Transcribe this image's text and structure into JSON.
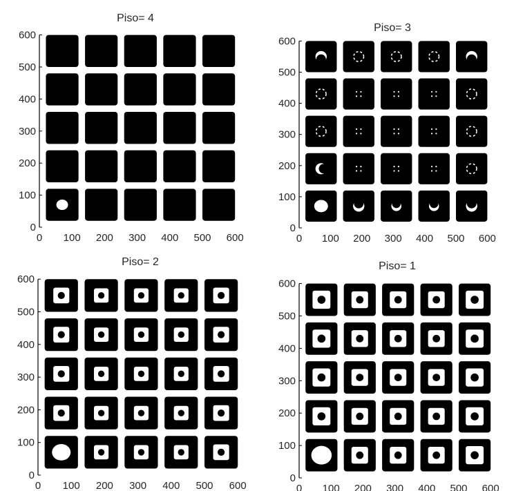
{
  "chart_data": [
    {
      "type": "scatter",
      "title": "Piso= 4",
      "xlim": [
        0,
        600
      ],
      "ylim": [
        0,
        600
      ],
      "xticks": [
        "0",
        "100",
        "200",
        "300",
        "400",
        "500",
        "600"
      ],
      "yticks": [
        "0",
        "100",
        "200",
        "300",
        "400",
        "500",
        "600"
      ],
      "grid": false,
      "blocks": {
        "count_x": 5,
        "count_y": 5,
        "block_size": 100,
        "pitch": 120,
        "first_center": 70
      },
      "colors": {
        "marker": "#000000",
        "background": "#ffffff"
      },
      "openings": [
        {
          "x": 70,
          "y": 70,
          "r": 18,
          "shape": "blob"
        }
      ]
    },
    {
      "type": "scatter",
      "title": "Piso= 3",
      "xlim": [
        0,
        600
      ],
      "ylim": [
        0,
        600
      ],
      "xticks": [
        "0",
        "100",
        "200",
        "300",
        "400",
        "500",
        "600"
      ],
      "yticks": [
        "0",
        "100",
        "200",
        "300",
        "400",
        "500",
        "600"
      ],
      "grid": false,
      "blocks": {
        "count_x": 5,
        "count_y": 5,
        "block_size": 100,
        "pitch": 120,
        "first_center": 70
      },
      "colors": {
        "marker": "#000000",
        "background": "#ffffff"
      },
      "openings": [
        {
          "x": 70,
          "y": 70,
          "r": 22,
          "shape": "blob"
        },
        {
          "x": 190,
          "y": 70,
          "r": 18,
          "shape": "crescent",
          "open": "up"
        },
        {
          "x": 310,
          "y": 70,
          "r": 16,
          "shape": "crescent",
          "open": "up"
        },
        {
          "x": 430,
          "y": 70,
          "r": 16,
          "shape": "crescent",
          "open": "up"
        },
        {
          "x": 550,
          "y": 70,
          "r": 18,
          "shape": "crescent",
          "open": "up"
        },
        {
          "x": 70,
          "y": 190,
          "r": 18,
          "shape": "crescent",
          "open": "right"
        },
        {
          "x": 190,
          "y": 190,
          "r": 10,
          "shape": "dots"
        },
        {
          "x": 310,
          "y": 190,
          "r": 10,
          "shape": "dots"
        },
        {
          "x": 430,
          "y": 190,
          "r": 10,
          "shape": "dots"
        },
        {
          "x": 550,
          "y": 190,
          "r": 16,
          "shape": "ring"
        },
        {
          "x": 70,
          "y": 310,
          "r": 16,
          "shape": "ring"
        },
        {
          "x": 190,
          "y": 310,
          "r": 10,
          "shape": "dots"
        },
        {
          "x": 310,
          "y": 310,
          "r": 10,
          "shape": "dots"
        },
        {
          "x": 430,
          "y": 310,
          "r": 10,
          "shape": "dots"
        },
        {
          "x": 550,
          "y": 310,
          "r": 16,
          "shape": "ring"
        },
        {
          "x": 70,
          "y": 430,
          "r": 16,
          "shape": "ring"
        },
        {
          "x": 190,
          "y": 430,
          "r": 10,
          "shape": "dots"
        },
        {
          "x": 310,
          "y": 430,
          "r": 10,
          "shape": "dots"
        },
        {
          "x": 430,
          "y": 430,
          "r": 10,
          "shape": "dots"
        },
        {
          "x": 550,
          "y": 430,
          "r": 16,
          "shape": "ring"
        },
        {
          "x": 70,
          "y": 550,
          "r": 18,
          "shape": "crescent",
          "open": "down"
        },
        {
          "x": 190,
          "y": 550,
          "r": 16,
          "shape": "ring"
        },
        {
          "x": 310,
          "y": 550,
          "r": 16,
          "shape": "ring"
        },
        {
          "x": 430,
          "y": 550,
          "r": 16,
          "shape": "ring"
        },
        {
          "x": 550,
          "y": 550,
          "r": 18,
          "shape": "crescent",
          "open": "down"
        }
      ]
    },
    {
      "type": "scatter",
      "title": "Piso= 2",
      "xlim": [
        0,
        600
      ],
      "ylim": [
        0,
        600
      ],
      "xticks": [
        "0",
        "100",
        "200",
        "300",
        "400",
        "500",
        "600"
      ],
      "yticks": [
        "0",
        "100",
        "200",
        "300",
        "400",
        "500",
        "600"
      ],
      "grid": false,
      "blocks": {
        "count_x": 5,
        "count_y": 5,
        "block_size": 100,
        "pitch": 120,
        "first_center": 70
      },
      "colors": {
        "marker": "#000000",
        "background": "#ffffff"
      },
      "openings": [
        {
          "x": 70,
          "y": 70,
          "r": 28,
          "shape": "blob"
        },
        {
          "x": 190,
          "y": 70,
          "r": 22,
          "shape": "square"
        },
        {
          "x": 310,
          "y": 70,
          "r": 22,
          "shape": "square"
        },
        {
          "x": 430,
          "y": 70,
          "r": 22,
          "shape": "square"
        },
        {
          "x": 550,
          "y": 70,
          "r": 24,
          "shape": "square"
        },
        {
          "x": 70,
          "y": 190,
          "r": 24,
          "shape": "square"
        },
        {
          "x": 190,
          "y": 190,
          "r": 22,
          "shape": "square"
        },
        {
          "x": 310,
          "y": 190,
          "r": 22,
          "shape": "square"
        },
        {
          "x": 430,
          "y": 190,
          "r": 22,
          "shape": "square"
        },
        {
          "x": 550,
          "y": 190,
          "r": 24,
          "shape": "square"
        },
        {
          "x": 70,
          "y": 310,
          "r": 24,
          "shape": "square"
        },
        {
          "x": 190,
          "y": 310,
          "r": 22,
          "shape": "square"
        },
        {
          "x": 310,
          "y": 310,
          "r": 22,
          "shape": "square"
        },
        {
          "x": 430,
          "y": 310,
          "r": 22,
          "shape": "square"
        },
        {
          "x": 550,
          "y": 310,
          "r": 24,
          "shape": "square"
        },
        {
          "x": 70,
          "y": 430,
          "r": 24,
          "shape": "square"
        },
        {
          "x": 190,
          "y": 430,
          "r": 22,
          "shape": "square"
        },
        {
          "x": 310,
          "y": 430,
          "r": 22,
          "shape": "square"
        },
        {
          "x": 430,
          "y": 430,
          "r": 22,
          "shape": "square"
        },
        {
          "x": 550,
          "y": 430,
          "r": 24,
          "shape": "square"
        },
        {
          "x": 70,
          "y": 550,
          "r": 24,
          "shape": "square"
        },
        {
          "x": 190,
          "y": 550,
          "r": 22,
          "shape": "square"
        },
        {
          "x": 310,
          "y": 550,
          "r": 22,
          "shape": "square"
        },
        {
          "x": 430,
          "y": 550,
          "r": 22,
          "shape": "square"
        },
        {
          "x": 550,
          "y": 550,
          "r": 24,
          "shape": "square"
        }
      ]
    },
    {
      "type": "scatter",
      "title": "Piso= 1",
      "xlim": [
        0,
        600
      ],
      "ylim": [
        0,
        600
      ],
      "xticks": [
        "0",
        "100",
        "200",
        "300",
        "400",
        "500",
        "600"
      ],
      "yticks": [
        "0",
        "100",
        "200",
        "300",
        "400",
        "500",
        "600"
      ],
      "grid": false,
      "blocks": {
        "count_x": 5,
        "count_y": 5,
        "block_size": 100,
        "pitch": 120,
        "first_center": 70
      },
      "colors": {
        "marker": "#000000",
        "background": "#ffffff"
      },
      "openings": [
        {
          "x": 70,
          "y": 70,
          "r": 32,
          "shape": "blob"
        },
        {
          "x": 190,
          "y": 70,
          "r": 26,
          "shape": "square"
        },
        {
          "x": 310,
          "y": 70,
          "r": 26,
          "shape": "square"
        },
        {
          "x": 430,
          "y": 70,
          "r": 26,
          "shape": "square"
        },
        {
          "x": 550,
          "y": 70,
          "r": 28,
          "shape": "square"
        },
        {
          "x": 70,
          "y": 190,
          "r": 28,
          "shape": "square"
        },
        {
          "x": 190,
          "y": 190,
          "r": 26,
          "shape": "square"
        },
        {
          "x": 310,
          "y": 190,
          "r": 26,
          "shape": "square"
        },
        {
          "x": 430,
          "y": 190,
          "r": 26,
          "shape": "square"
        },
        {
          "x": 550,
          "y": 190,
          "r": 28,
          "shape": "square"
        },
        {
          "x": 70,
          "y": 310,
          "r": 28,
          "shape": "square"
        },
        {
          "x": 190,
          "y": 310,
          "r": 26,
          "shape": "square"
        },
        {
          "x": 310,
          "y": 310,
          "r": 26,
          "shape": "square"
        },
        {
          "x": 430,
          "y": 310,
          "r": 26,
          "shape": "square"
        },
        {
          "x": 550,
          "y": 310,
          "r": 28,
          "shape": "square"
        },
        {
          "x": 70,
          "y": 430,
          "r": 28,
          "shape": "square"
        },
        {
          "x": 190,
          "y": 430,
          "r": 26,
          "shape": "square"
        },
        {
          "x": 310,
          "y": 430,
          "r": 26,
          "shape": "square"
        },
        {
          "x": 430,
          "y": 430,
          "r": 26,
          "shape": "square"
        },
        {
          "x": 550,
          "y": 430,
          "r": 28,
          "shape": "square"
        },
        {
          "x": 70,
          "y": 550,
          "r": 28,
          "shape": "square"
        },
        {
          "x": 190,
          "y": 550,
          "r": 26,
          "shape": "square"
        },
        {
          "x": 310,
          "y": 550,
          "r": 26,
          "shape": "square"
        },
        {
          "x": 430,
          "y": 550,
          "r": 26,
          "shape": "square"
        },
        {
          "x": 550,
          "y": 550,
          "r": 28,
          "shape": "square"
        }
      ]
    }
  ]
}
